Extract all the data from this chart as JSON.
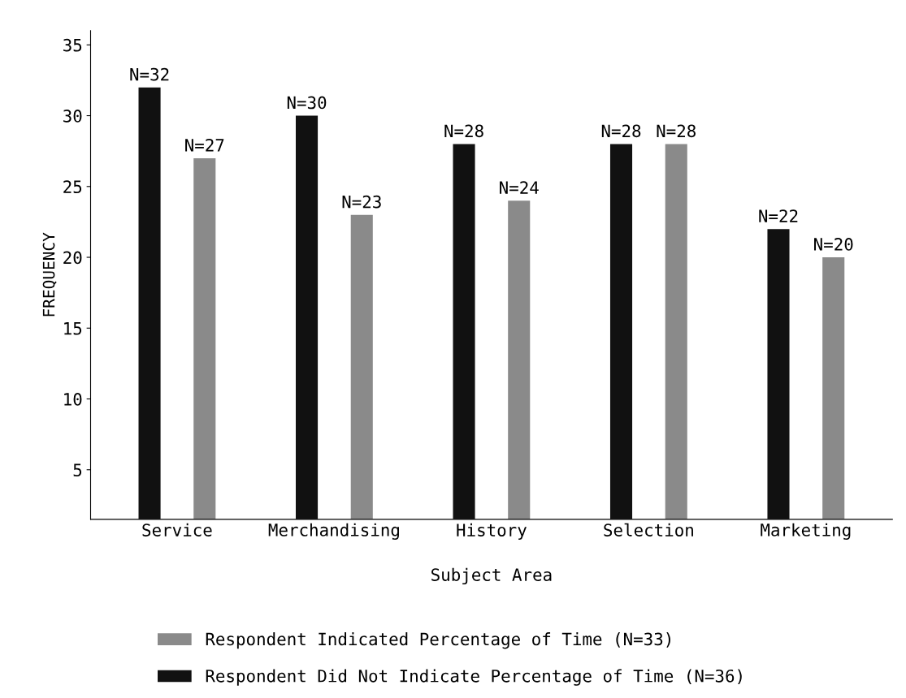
{
  "chart_data": {
    "type": "bar",
    "xlabel": "Subject Area",
    "ylabel": "FREQUENCY",
    "categories": [
      "Service",
      "Merchandising",
      "History",
      "Selection",
      "Marketing"
    ],
    "series": [
      {
        "name": "Respondent Did Not Indicate Percentage of Time (N=36)",
        "color": "#111111",
        "values": [
          32,
          30,
          28,
          28,
          22
        ],
        "value_labels": [
          "N=32",
          "N=30",
          "N=28",
          "N=28",
          "N=22"
        ]
      },
      {
        "name": "Respondent Indicated Percentage of Time (N=33)",
        "color": "#8a8a8a",
        "values": [
          27,
          23,
          24,
          28,
          20
        ],
        "value_labels": [
          "N=27",
          "N=23",
          "N=24",
          "N=28",
          "N=20"
        ]
      }
    ],
    "ylim": [
      1.5,
      36
    ],
    "yticks": [
      5,
      10,
      15,
      20,
      25,
      30,
      35
    ],
    "grid": false,
    "legend": "bottom"
  }
}
